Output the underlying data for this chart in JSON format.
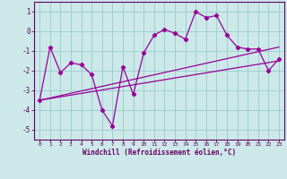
{
  "xlabel": "Windchill (Refroidissement éolien,°C)",
  "hours": [
    0,
    1,
    2,
    3,
    4,
    5,
    6,
    7,
    8,
    9,
    10,
    11,
    12,
    13,
    14,
    15,
    16,
    17,
    18,
    19,
    20,
    21,
    22,
    23
  ],
  "windchill": [
    -3.5,
    -0.8,
    -2.1,
    -1.6,
    -1.7,
    -2.2,
    -4.0,
    -4.8,
    -1.8,
    -3.2,
    -1.1,
    -0.2,
    0.1,
    -0.1,
    -0.4,
    1.0,
    0.7,
    0.8,
    -0.2,
    -0.8,
    -0.9,
    -0.9,
    -2.0,
    -1.4
  ],
  "trend1_start": [
    -3.5
  ],
  "trend1_end": [
    -0.8
  ],
  "trend2_end": [
    -1.5
  ],
  "line_color": "#990099",
  "bg_color": "#cce8e8",
  "grid_color": "#99cccc",
  "ylim": [
    -5.5,
    1.5
  ],
  "yticks": [
    -5,
    -4,
    -3,
    -2,
    -1,
    0,
    1
  ],
  "xticks": [
    0,
    1,
    2,
    3,
    4,
    5,
    6,
    7,
    8,
    9,
    10,
    11,
    12,
    13,
    14,
    15,
    16,
    17,
    18,
    19,
    20,
    21,
    22,
    23
  ]
}
